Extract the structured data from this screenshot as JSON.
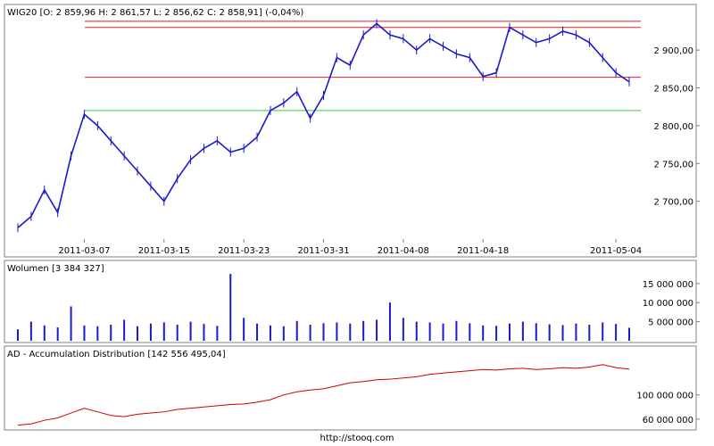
{
  "credit": "http://stooq.com",
  "colors": {
    "price": "#1a1acc",
    "volume": "#1a1acc",
    "ad": "#cc0000",
    "trend_red": "#dd2222",
    "trend_green": "#33cc33",
    "frame": "#808080"
  },
  "chart_data": [
    {
      "type": "line",
      "title": "WIG20 [O: 2 859,96  H: 2 861,57  L: 2 856,62  C: 2 858,91] (-0,04%)",
      "x_tick_labels": [
        "2011-03-07",
        "2011-03-15",
        "2011-03-23",
        "2011-03-31",
        "2011-04-08",
        "2011-04-18",
        "2011-05-04"
      ],
      "y_tick_labels": [
        "2 900,00",
        "2 850,00",
        "2 800,00",
        "2 750,00",
        "2 700,00"
      ],
      "y_ticks": [
        2900,
        2850,
        2800,
        2750,
        2700
      ],
      "ylim": [
        2650,
        2945
      ],
      "grid": false,
      "x": [
        "2011-02-28",
        "2011-03-01",
        "2011-03-02",
        "2011-03-03",
        "2011-03-04",
        "2011-03-07",
        "2011-03-08",
        "2011-03-09",
        "2011-03-10",
        "2011-03-11",
        "2011-03-14",
        "2011-03-15",
        "2011-03-16",
        "2011-03-17",
        "2011-03-18",
        "2011-03-21",
        "2011-03-22",
        "2011-03-23",
        "2011-03-24",
        "2011-03-25",
        "2011-03-28",
        "2011-03-29",
        "2011-03-30",
        "2011-03-31",
        "2011-04-01",
        "2011-04-04",
        "2011-04-05",
        "2011-04-06",
        "2011-04-07",
        "2011-04-08",
        "2011-04-11",
        "2011-04-12",
        "2011-04-13",
        "2011-04-14",
        "2011-04-15",
        "2011-04-18",
        "2011-04-19",
        "2011-04-20",
        "2011-04-21",
        "2011-04-22",
        "2011-04-26",
        "2011-04-27",
        "2011-04-28",
        "2011-04-29",
        "2011-05-02",
        "2011-05-04",
        "2011-05-05"
      ],
      "series": [
        {
          "values": [
            2665,
            2680,
            2715,
            2685,
            2760,
            2815,
            2800,
            2780,
            2760,
            2740,
            2720,
            2700,
            2730,
            2755,
            2770,
            2780,
            2765,
            2770,
            2785,
            2820,
            2830,
            2845,
            2810,
            2840,
            2890,
            2880,
            2920,
            2935,
            2920,
            2915,
            2900,
            2915,
            2905,
            2895,
            2890,
            2865,
            2870,
            2930,
            2920,
            2910,
            2915,
            2925,
            2920,
            2910,
            2890,
            2870,
            2858
          ]
        }
      ],
      "levels": [
        {
          "value": 2938,
          "color": "red"
        },
        {
          "value": 2864,
          "color": "red"
        },
        {
          "value": 2930,
          "color": "red"
        },
        {
          "value": 2820,
          "color": "green"
        }
      ]
    },
    {
      "type": "bar",
      "title": "Wolumen [3 384 327]",
      "y_tick_labels": [
        "15 000 000",
        "10 000 000",
        "5 000 000"
      ],
      "y_ticks": [
        15000000,
        10000000,
        5000000
      ],
      "ylim": [
        0,
        18000000
      ],
      "values": [
        3000000,
        5000000,
        4000000,
        3500000,
        9000000,
        4000000,
        3800000,
        4200000,
        5500000,
        3800000,
        4500000,
        4800000,
        4200000,
        5000000,
        4400000,
        3900000,
        17500000,
        6000000,
        4500000,
        4000000,
        3800000,
        5200000,
        4200000,
        4600000,
        4800000,
        4500000,
        5200000,
        5500000,
        10000000,
        6000000,
        5000000,
        4800000,
        4500000,
        5200000,
        4600000,
        4000000,
        3900000,
        4500000,
        5000000,
        4600000,
        4300000,
        4100000,
        4500000,
        4200000,
        4800000,
        4400000,
        3400000
      ]
    },
    {
      "type": "line",
      "title": "AD - Accumulation Distribution [142 556 495,04]",
      "y_tick_labels": [
        "100 000 000",
        "60 000 000"
      ],
      "y_ticks": [
        100000000,
        60000000
      ],
      "ylim": [
        45000000,
        160000000
      ],
      "series": [
        {
          "values": [
            50000000,
            52000000,
            58000000,
            62000000,
            70000000,
            78000000,
            72000000,
            66000000,
            64000000,
            68000000,
            70000000,
            72000000,
            76000000,
            78000000,
            80000000,
            82000000,
            84000000,
            85000000,
            88000000,
            92000000,
            100000000,
            105000000,
            108000000,
            110000000,
            115000000,
            120000000,
            122000000,
            125000000,
            126000000,
            128000000,
            130000000,
            134000000,
            136000000,
            138000000,
            140000000,
            142000000,
            141000000,
            143000000,
            144000000,
            142000000,
            143000000,
            145000000,
            144000000,
            146000000,
            150000000,
            145000000,
            142556495
          ]
        }
      ]
    }
  ]
}
